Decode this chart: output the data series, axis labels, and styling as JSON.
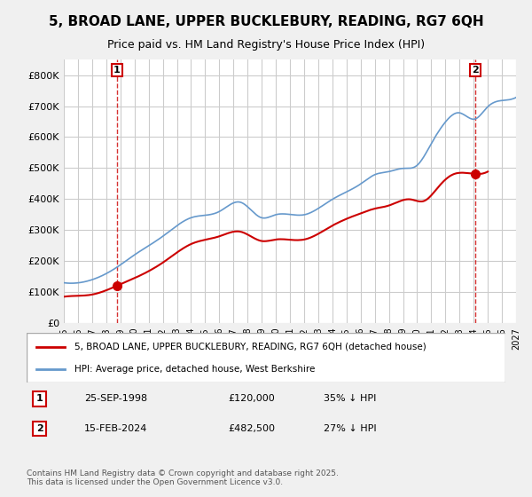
{
  "title": "5, BROAD LANE, UPPER BUCKLEBURY, READING, RG7 6QH",
  "subtitle": "Price paid vs. HM Land Registry's House Price Index (HPI)",
  "legend_entry1": "5, BROAD LANE, UPPER BUCKLEBURY, READING, RG7 6QH (detached house)",
  "legend_entry2": "HPI: Average price, detached house, West Berkshire",
  "annotation1_label": "1",
  "annotation1_date": "25-SEP-1998",
  "annotation1_price": "£120,000",
  "annotation1_hpi": "35% ↓ HPI",
  "annotation2_label": "2",
  "annotation2_date": "15-FEB-2024",
  "annotation2_price": "£482,500",
  "annotation2_hpi": "27% ↓ HPI",
  "footer": "Contains HM Land Registry data © Crown copyright and database right 2025.\nThis data is licensed under the Open Government Licence v3.0.",
  "price_color": "#cc0000",
  "hpi_color": "#6699cc",
  "background_color": "#f0f0f0",
  "plot_bg_color": "#ffffff",
  "ylabel": "",
  "xlabel": "",
  "ylim": [
    0,
    850000
  ],
  "yticks": [
    0,
    100000,
    200000,
    300000,
    400000,
    500000,
    600000,
    700000,
    800000
  ],
  "ytick_labels": [
    "£0",
    "£100K",
    "£200K",
    "£300K",
    "£400K",
    "£500K",
    "£600K",
    "£700K",
    "£800K"
  ]
}
